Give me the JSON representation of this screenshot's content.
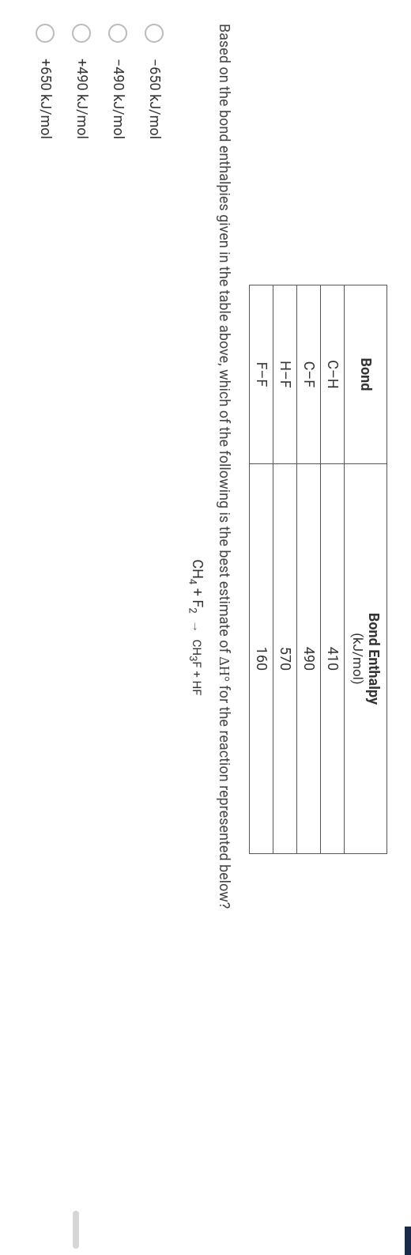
{
  "table": {
    "headers": {
      "bond": "Bond",
      "enthalpy": "Bond Enthalpy",
      "enthalpy_unit": "(kJ/mol)"
    },
    "rows": [
      {
        "bond": "C–H",
        "value": "410"
      },
      {
        "bond": "C–F",
        "value": "490"
      },
      {
        "bond": "H–F",
        "value": "570"
      },
      {
        "bond": "F–F",
        "value": "160"
      }
    ]
  },
  "question_prefix": "Based on the bond enthalpies given in the table above, which of the following is the best estimate of ",
  "question_delta": "ΔH°",
  "question_suffix": " for the reaction represented below?",
  "equation": {
    "r1": "CH",
    "r1_sub": "4",
    "plus1": " + ",
    "r2": "F",
    "r2_sub": "2",
    "arrow": "→",
    "p1": "CH",
    "p1_sub": "3",
    "p1b": "F",
    "plus2": " + ",
    "p2": "HF"
  },
  "choices": [
    {
      "label": "−650 kJ/mol"
    },
    {
      "label": "−490 kJ/mol"
    },
    {
      "label": "+490 kJ/mol"
    },
    {
      "label": "+650 kJ/mol"
    }
  ]
}
